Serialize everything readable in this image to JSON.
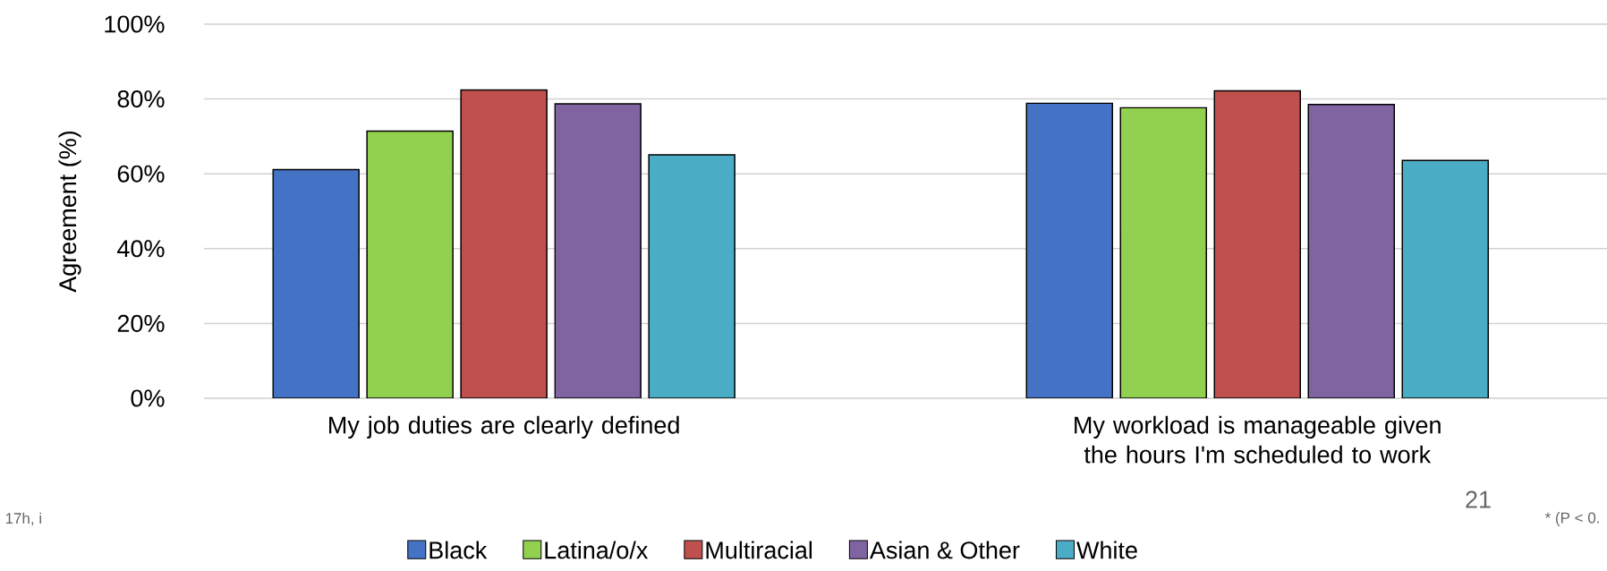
{
  "chart_data": {
    "type": "bar",
    "ylabel": "Agreement (%)",
    "categories": [
      "My job duties are clearly defined",
      "My workload is manageable given the hours I'm scheduled to work"
    ],
    "series": [
      {
        "name": "Black",
        "color": "#4472c4",
        "values": [
          61.1,
          78.9
        ]
      },
      {
        "name": "Latina/o/x",
        "color": "#92d050",
        "values": [
          71.4,
          77.7
        ]
      },
      {
        "name": "Multiracial",
        "color": "#c0504d",
        "values": [
          82.4,
          82.2
        ]
      },
      {
        "name": "Asian & Other",
        "color": "#8064a2",
        "values": [
          78.7,
          78.5
        ]
      },
      {
        "name": "White",
        "color": "#4bacc6",
        "values": [
          65.1,
          63.6
        ]
      }
    ],
    "ylim": [
      0,
      100
    ],
    "yticks": [
      {
        "value": 0,
        "label": "0%"
      },
      {
        "value": 20,
        "label": "20%"
      },
      {
        "value": 40,
        "label": "40%"
      },
      {
        "value": 60,
        "label": "60%"
      },
      {
        "value": 80,
        "label": "80%"
      },
      {
        "value": 100,
        "label": "100%"
      }
    ],
    "grid": "y",
    "legend": "bottom",
    "annotations": [
      "21",
      "* (P < 0.",
      "17h, i"
    ]
  }
}
